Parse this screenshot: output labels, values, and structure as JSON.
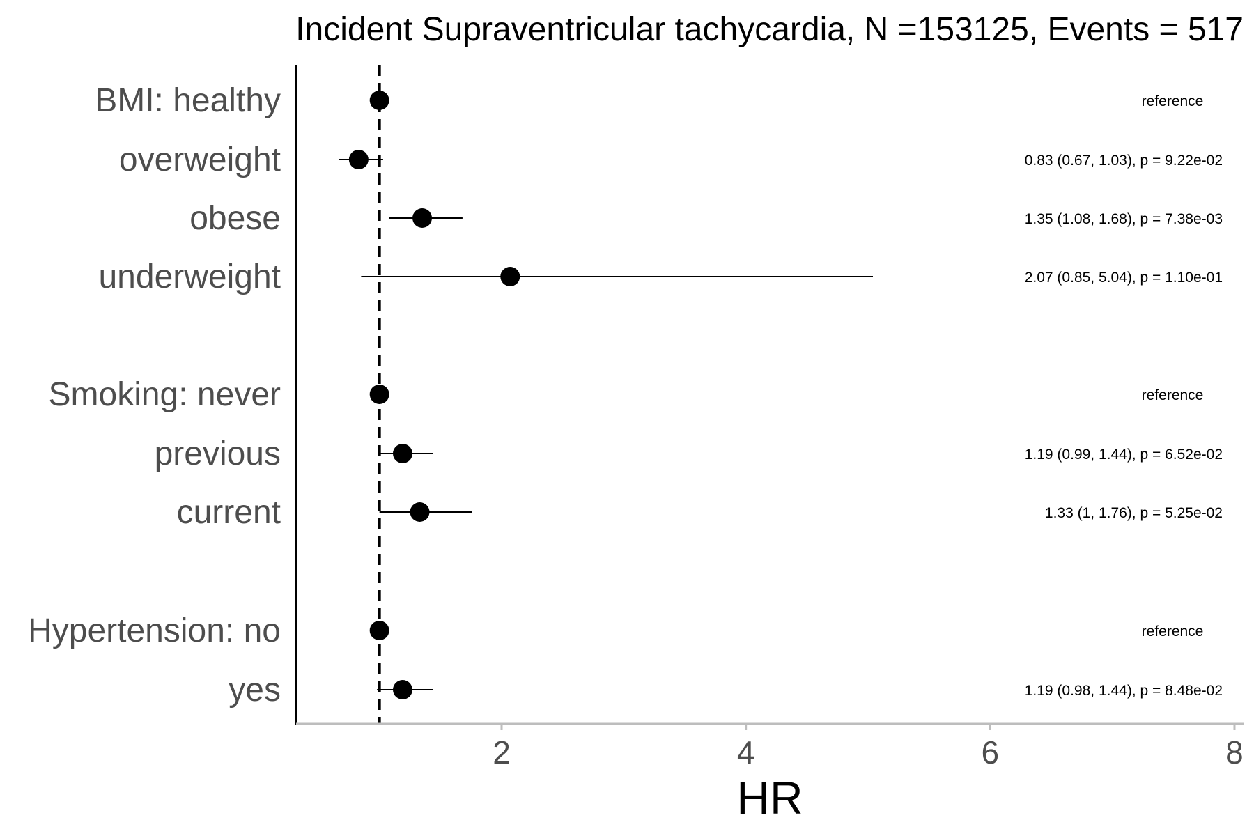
{
  "chart_data": {
    "type": "forest",
    "title": "Incident Supraventricular tachycardia, N =153125, Events = 517",
    "xlabel": "HR",
    "xlim": [
      0.3,
      8
    ],
    "xticks": [
      "2",
      "4",
      "6",
      "8"
    ],
    "reference_line": 1,
    "rows": [
      {
        "label": "BMI: healthy",
        "hr": 1.0,
        "low": null,
        "high": null,
        "annotation": "reference"
      },
      {
        "label": "overweight",
        "hr": 0.83,
        "low": 0.67,
        "high": 1.03,
        "annotation": "0.83 (0.67, 1.03), p = 9.22e-02"
      },
      {
        "label": "obese",
        "hr": 1.35,
        "low": 1.08,
        "high": 1.68,
        "annotation": "1.35 (1.08, 1.68), p = 7.38e-03"
      },
      {
        "label": "underweight",
        "hr": 2.07,
        "low": 0.85,
        "high": 5.04,
        "annotation": "2.07 (0.85, 5.04), p = 1.10e-01"
      },
      {
        "label": "Smoking: never",
        "hr": 1.0,
        "low": null,
        "high": null,
        "annotation": "reference"
      },
      {
        "label": "previous",
        "hr": 1.19,
        "low": 0.99,
        "high": 1.44,
        "annotation": "1.19 (0.99, 1.44), p = 6.52e-02"
      },
      {
        "label": "current",
        "hr": 1.33,
        "low": 1.0,
        "high": 1.76,
        "annotation": "1.33 (1, 1.76), p = 5.25e-02"
      },
      {
        "label": "Hypertension: no",
        "hr": 1.0,
        "low": null,
        "high": null,
        "annotation": "reference"
      },
      {
        "label": "yes",
        "hr": 1.19,
        "low": 0.98,
        "high": 1.44,
        "annotation": "1.19 (0.98, 1.44), p = 8.48e-02"
      }
    ]
  }
}
